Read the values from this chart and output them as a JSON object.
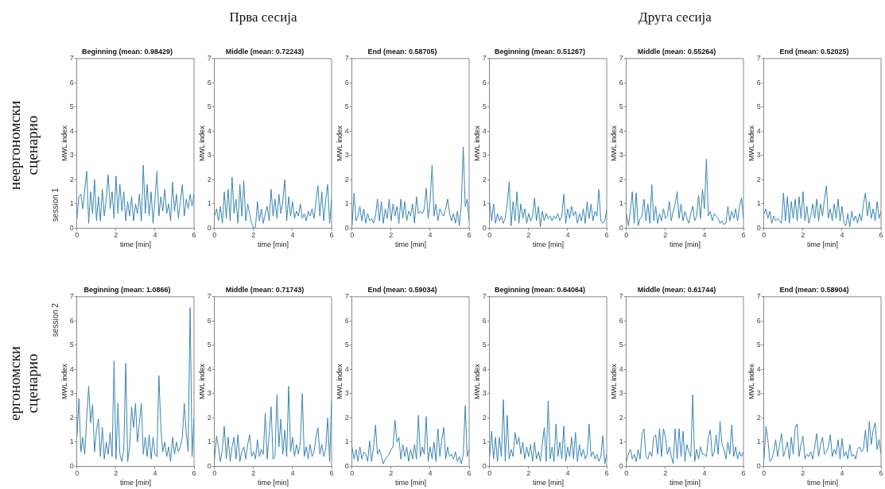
{
  "chart_data": [
    {
      "type": "line",
      "title": "Beginning (mean: 0.98429)",
      "xlabel": "time [min]",
      "ylabel": "MWL index",
      "annotations": [
        "session 1",
        "неергономски сценарио"
      ],
      "color": "#3a86b0",
      "xlim": [
        0,
        6
      ],
      "xticks": [
        0,
        2,
        4,
        6
      ],
      "ylim": [
        0,
        7
      ],
      "yticks": [
        0,
        1,
        2,
        3,
        4,
        5,
        6,
        7
      ],
      "x": [
        0,
        0.1,
        0.2,
        0.3,
        0.4,
        0.5,
        0.6,
        0.7,
        0.8,
        0.9,
        1,
        1.1,
        1.2,
        1.3,
        1.4,
        1.5,
        1.6,
        1.7,
        1.8,
        1.9,
        2,
        2.1,
        2.2,
        2.3,
        2.4,
        2.5,
        2.6,
        2.7,
        2.8,
        2.9,
        3,
        3.1,
        3.2,
        3.3,
        3.4,
        3.5,
        3.6,
        3.7,
        3.8,
        3.9,
        4,
        4.1,
        4.2,
        4.3,
        4.4,
        4.5,
        4.6,
        4.7,
        4.8,
        4.9,
        5,
        5.1,
        5.2,
        5.3,
        5.4,
        5.5,
        5.6,
        5.7,
        5.8,
        5.9,
        6
      ],
      "values": [
        0.4,
        1.3,
        1.4,
        0.8,
        1.6,
        2.35,
        0.2,
        1.5,
        0.6,
        2.0,
        0.3,
        1.3,
        0.3,
        1.6,
        0.5,
        1.2,
        2.2,
        0.8,
        1.5,
        0.4,
        2.15,
        0.6,
        1.8,
        0.7,
        1.5,
        0.3,
        1.1,
        0.5,
        1.3,
        0.3,
        1.0,
        0.6,
        1.4,
        0.3,
        2.6,
        0.6,
        1.8,
        0.5,
        1.5,
        0.2,
        1.2,
        2.35,
        0.5,
        1.3,
        0.7,
        1.6,
        0.6,
        1.0,
        0.3,
        1.9,
        0.7,
        1.4,
        0.4,
        1.1,
        1.8,
        0.5,
        1.2,
        0.8,
        1.4,
        0.9,
        1.4
      ]
    },
    {
      "type": "line",
      "title": "Middle (mean: 0.72243)",
      "xlabel": "time [min]",
      "ylabel": "MWL index",
      "annotations": [
        "Прва сесија"
      ],
      "color": "#3a86b0",
      "xlim": [
        0,
        6
      ],
      "xticks": [
        0,
        2,
        4,
        6
      ],
      "ylim": [
        0,
        7
      ],
      "yticks": [
        0,
        1,
        2,
        3,
        4,
        5,
        6,
        7
      ],
      "x": [
        0,
        0.1,
        0.2,
        0.3,
        0.4,
        0.5,
        0.6,
        0.7,
        0.8,
        0.9,
        1,
        1.1,
        1.2,
        1.3,
        1.4,
        1.5,
        1.6,
        1.7,
        1.8,
        1.9,
        2,
        2.1,
        2.2,
        2.3,
        2.4,
        2.5,
        2.6,
        2.7,
        2.8,
        2.9,
        3,
        3.1,
        3.2,
        3.3,
        3.4,
        3.5,
        3.6,
        3.7,
        3.8,
        3.9,
        4,
        4.1,
        4.2,
        4.3,
        4.4,
        4.5,
        4.6,
        4.7,
        4.8,
        4.9,
        5,
        5.1,
        5.2,
        5.3,
        5.4,
        5.5,
        5.6,
        5.7,
        5.8,
        5.9,
        6
      ],
      "values": [
        0.5,
        0.8,
        0.3,
        0.9,
        0.2,
        1.5,
        0.4,
        1.6,
        0.3,
        2.1,
        0.6,
        1.2,
        0.2,
        1.8,
        0.5,
        1.95,
        0.3,
        1.0,
        0.6,
        0.2,
        0.0,
        0.05,
        1.1,
        0.3,
        0.8,
        0.2,
        0.6,
        0.9,
        0.3,
        1.6,
        0.5,
        1.2,
        0.4,
        1.4,
        0.6,
        1.1,
        2.0,
        0.3,
        1.3,
        0.5,
        1.1,
        0.4,
        0.7,
        0.5,
        1.0,
        0.4,
        0.6,
        0.3,
        0.7,
        0.5,
        0.8,
        0.4,
        1.1,
        1.75,
        0.5,
        1.5,
        0.3,
        1.2,
        1.8,
        0.2,
        1.2
      ]
    },
    {
      "type": "line",
      "title": "End (mean: 0.58705)",
      "xlabel": "time [min]",
      "ylabel": "MWL index",
      "color": "#3a86b0",
      "xlim": [
        0,
        6
      ],
      "xticks": [
        0,
        2,
        4,
        6
      ],
      "ylim": [
        0,
        7
      ],
      "yticks": [
        0,
        1,
        2,
        3,
        4,
        5,
        6,
        7
      ],
      "x": [
        0,
        0.1,
        0.2,
        0.3,
        0.4,
        0.5,
        0.6,
        0.7,
        0.8,
        0.9,
        1,
        1.1,
        1.2,
        1.3,
        1.4,
        1.5,
        1.6,
        1.7,
        1.8,
        1.9,
        2,
        2.1,
        2.2,
        2.3,
        2.4,
        2.5,
        2.6,
        2.7,
        2.8,
        2.9,
        3,
        3.1,
        3.2,
        3.3,
        3.4,
        3.5,
        3.6,
        3.7,
        3.8,
        3.9,
        4,
        4.1,
        4.2,
        4.3,
        4.4,
        4.5,
        4.6,
        4.7,
        4.8,
        4.9,
        5,
        5.1,
        5.2,
        5.3,
        5.4,
        5.5,
        5.6,
        5.7,
        5.8,
        5.9,
        6
      ],
      "values": [
        0.1,
        1.45,
        0.3,
        0.5,
        0.9,
        0.3,
        0.8,
        0.2,
        0.6,
        0.3,
        0.4,
        0.2,
        0.5,
        1.2,
        0.3,
        1.1,
        0.2,
        0.8,
        0.4,
        1.2,
        0.3,
        1.0,
        0.5,
        0.9,
        0.2,
        1.2,
        0.4,
        1.1,
        0.3,
        0.7,
        0.5,
        1.0,
        0.2,
        1.3,
        0.6,
        0.7,
        0.6,
        0.8,
        1.65,
        0.4,
        1.1,
        2.6,
        0.5,
        1.0,
        0.3,
        0.8,
        0.6,
        0.5,
        0.8,
        1.2,
        0.6,
        0.3,
        0.6,
        0.2,
        0.7,
        0.1,
        1.0,
        3.35,
        0.9,
        1.2,
        0.3
      ]
    },
    {
      "type": "line",
      "title": "Beginning (mean: 0.51267)",
      "xlabel": "time [min]",
      "ylabel": "MWL index",
      "color": "#3a86b0",
      "xlim": [
        0,
        6
      ],
      "xticks": [
        0,
        2,
        4,
        6
      ],
      "ylim": [
        0,
        7
      ],
      "yticks": [
        0,
        1,
        2,
        3,
        4,
        5,
        6,
        7
      ],
      "x": [
        0,
        0.1,
        0.2,
        0.3,
        0.4,
        0.5,
        0.6,
        0.7,
        0.8,
        0.9,
        1,
        1.1,
        1.2,
        1.3,
        1.4,
        1.5,
        1.6,
        1.7,
        1.8,
        1.9,
        2,
        2.1,
        2.2,
        2.3,
        2.4,
        2.5,
        2.6,
        2.7,
        2.8,
        2.9,
        3,
        3.1,
        3.2,
        3.3,
        3.4,
        3.5,
        3.6,
        3.7,
        3.8,
        3.9,
        4,
        4.1,
        4.2,
        4.3,
        4.4,
        4.5,
        4.6,
        4.7,
        4.8,
        4.9,
        5,
        5.1,
        5.2,
        5.3,
        5.4,
        5.5,
        5.6,
        5.7,
        5.8,
        5.9,
        6
      ],
      "values": [
        1.1,
        0.3,
        1.0,
        0.2,
        0.6,
        0.3,
        0.5,
        0.2,
        0.4,
        1.0,
        1.9,
        0.1,
        1.1,
        0.3,
        1.5,
        0.2,
        1.0,
        0.4,
        0.8,
        0.2,
        0.6,
        0.3,
        0.5,
        1.25,
        0.3,
        0.9,
        0.05,
        0.7,
        0.3,
        0.6,
        0.4,
        0.5,
        0.3,
        0.5,
        0.4,
        0.6,
        0.3,
        0.5,
        1.4,
        0.2,
        0.8,
        0.4,
        0.9,
        0.5,
        0.7,
        0.2,
        0.6,
        0.3,
        0.8,
        0.2,
        1.1,
        0.4,
        1.0,
        0.3,
        0.7,
        0.5,
        1.6,
        0.3,
        0.2,
        0.3,
        0.75
      ]
    },
    {
      "type": "line",
      "title": "Middle (mean: 0.55264)",
      "xlabel": "time [min]",
      "ylabel": "MWL index",
      "annotations": [
        "Друга сесија"
      ],
      "color": "#3a86b0",
      "xlim": [
        0,
        6
      ],
      "xticks": [
        0,
        2,
        4,
        6
      ],
      "ylim": [
        0,
        7
      ],
      "yticks": [
        0,
        1,
        2,
        3,
        4,
        5,
        6,
        7
      ],
      "x": [
        0,
        0.1,
        0.2,
        0.3,
        0.4,
        0.5,
        0.6,
        0.7,
        0.8,
        0.9,
        1,
        1.1,
        1.2,
        1.3,
        1.4,
        1.5,
        1.6,
        1.7,
        1.8,
        1.9,
        2,
        2.1,
        2.2,
        2.3,
        2.4,
        2.5,
        2.6,
        2.7,
        2.8,
        2.9,
        3,
        3.1,
        3.2,
        3.3,
        3.4,
        3.5,
        3.6,
        3.7,
        3.8,
        3.9,
        4,
        4.1,
        4.2,
        4.3,
        4.4,
        4.5,
        4.6,
        4.7,
        4.8,
        4.9,
        5,
        5.1,
        5.2,
        5.3,
        5.4,
        5.5,
        5.6,
        5.7,
        5.8,
        5.9,
        6
      ],
      "values": [
        0.6,
        0.1,
        0.7,
        1.5,
        0.2,
        1.45,
        0.1,
        0.4,
        0.5,
        1.2,
        0.3,
        1.0,
        0.2,
        1.8,
        0.3,
        0.9,
        0.2,
        0.6,
        0.3,
        0.8,
        0.4,
        0.5,
        1.1,
        0.3,
        0.7,
        1.0,
        1.5,
        0.4,
        1.0,
        0.3,
        0.7,
        0.4,
        0.2,
        0.6,
        0.9,
        0.3,
        0.5,
        1.35,
        0.4,
        1.6,
        0.8,
        2.85,
        0.5,
        0.7,
        0.3,
        0.6,
        0.5,
        0.4,
        0.2,
        0.3,
        0.15,
        0.2,
        0.9,
        0.3,
        0.7,
        0.4,
        0.8,
        0.3,
        0.9,
        1.25,
        0.4
      ]
    },
    {
      "type": "line",
      "title": "End (mean: 0.52025)",
      "xlabel": "time [min]",
      "ylabel": "MWL index",
      "color": "#3a86b0",
      "xlim": [
        0,
        6
      ],
      "xticks": [
        0,
        2,
        4,
        6
      ],
      "ylim": [
        0,
        7
      ],
      "yticks": [
        0,
        1,
        2,
        3,
        4,
        5,
        6,
        7
      ],
      "x": [
        0,
        0.1,
        0.2,
        0.3,
        0.4,
        0.5,
        0.6,
        0.7,
        0.8,
        0.9,
        1,
        1.1,
        1.2,
        1.3,
        1.4,
        1.5,
        1.6,
        1.7,
        1.8,
        1.9,
        2,
        2.1,
        2.2,
        2.3,
        2.4,
        2.5,
        2.6,
        2.7,
        2.8,
        2.9,
        3,
        3.1,
        3.2,
        3.3,
        3.4,
        3.5,
        3.6,
        3.7,
        3.8,
        3.9,
        4,
        4.1,
        4.2,
        4.3,
        4.4,
        4.5,
        4.6,
        4.7,
        4.8,
        4.9,
        5,
        5.1,
        5.2,
        5.3,
        5.4,
        5.5,
        5.6,
        5.7,
        5.8,
        5.9,
        6
      ],
      "values": [
        0.6,
        0.8,
        0.4,
        0.7,
        0.2,
        0.5,
        0.3,
        0.4,
        0.3,
        0.2,
        1.45,
        0.3,
        1.3,
        0.2,
        1.1,
        0.4,
        1.2,
        0.3,
        1.3,
        0.4,
        1.5,
        0.3,
        0.9,
        0.2,
        0.5,
        1.0,
        0.4,
        1.2,
        0.3,
        1.0,
        0.5,
        1.2,
        1.75,
        0.4,
        0.8,
        0.3,
        1.0,
        0.4,
        1.2,
        0.3,
        0.9,
        0.2,
        0.1,
        0.6,
        0.05,
        0.7,
        0.3,
        0.5,
        0.2,
        0.6,
        0.3,
        1.0,
        1.45,
        0.5,
        1.1,
        0.4,
        0.8,
        0.3,
        1.1,
        0.4,
        0.7
      ]
    },
    {
      "type": "line",
      "title": "Beginning (mean: 1.0866)",
      "xlabel": "time [min]",
      "ylabel": "MWL index",
      "annotations": [
        "session 2",
        "ергономски сценарио"
      ],
      "color": "#3a86b0",
      "xlim": [
        0,
        6
      ],
      "xticks": [
        0,
        2,
        4,
        6
      ],
      "ylim": [
        0,
        7
      ],
      "yticks": [
        0,
        1,
        2,
        3,
        4,
        5,
        6,
        7
      ],
      "x": [
        0,
        0.1,
        0.2,
        0.3,
        0.4,
        0.5,
        0.6,
        0.7,
        0.8,
        0.9,
        1,
        1.1,
        1.2,
        1.3,
        1.4,
        1.5,
        1.6,
        1.7,
        1.8,
        1.9,
        2,
        2.1,
        2.2,
        2.3,
        2.4,
        2.5,
        2.6,
        2.7,
        2.8,
        2.9,
        3,
        3.1,
        3.2,
        3.3,
        3.4,
        3.5,
        3.6,
        3.7,
        3.8,
        3.9,
        4,
        4.1,
        4.2,
        4.3,
        4.4,
        4.5,
        4.6,
        4.7,
        4.8,
        4.9,
        5,
        5.1,
        5.2,
        5.3,
        5.4,
        5.5,
        5.6,
        5.7,
        5.8,
        5.9,
        6
      ],
      "values": [
        1.2,
        2.8,
        0.6,
        1.2,
        0.5,
        2.0,
        3.3,
        1.8,
        2.55,
        0.6,
        1.5,
        1.95,
        0.4,
        1.6,
        0.3,
        1.0,
        0.5,
        1.4,
        0.4,
        4.35,
        0.3,
        2.6,
        0.5,
        0.2,
        0.7,
        4.25,
        0.2,
        0.8,
        2.45,
        1.6,
        2.6,
        1.0,
        1.8,
        2.6,
        0.5,
        1.2,
        0.4,
        1.3,
        0.3,
        1.2,
        0.5,
        0.4,
        3.75,
        1.6,
        0.6,
        1.0,
        0.4,
        0.8,
        0.2,
        1.2,
        0.5,
        1.0,
        0.6,
        0.8,
        1.2,
        2.6,
        1.4,
        0.6,
        6.55,
        0.4,
        2.0
      ]
    },
    {
      "type": "line",
      "title": "Middle (mean: 0.71743)",
      "xlabel": "time [min]",
      "ylabel": "MWL index",
      "color": "#3a86b0",
      "xlim": [
        0,
        6
      ],
      "xticks": [
        0,
        2,
        4,
        6
      ],
      "ylim": [
        0,
        7
      ],
      "yticks": [
        0,
        1,
        2,
        3,
        4,
        5,
        6,
        7
      ],
      "x": [
        0,
        0.1,
        0.2,
        0.3,
        0.4,
        0.5,
        0.6,
        0.7,
        0.8,
        0.9,
        1,
        1.1,
        1.2,
        1.3,
        1.4,
        1.5,
        1.6,
        1.7,
        1.8,
        1.9,
        2,
        2.1,
        2.2,
        2.3,
        2.4,
        2.5,
        2.6,
        2.7,
        2.8,
        2.9,
        3,
        3.1,
        3.2,
        3.3,
        3.4,
        3.5,
        3.6,
        3.7,
        3.8,
        3.9,
        4,
        4.1,
        4.2,
        4.3,
        4.4,
        4.5,
        4.6,
        4.7,
        4.8,
        4.9,
        5,
        5.1,
        5.2,
        5.3,
        5.4,
        5.5,
        5.6,
        5.7,
        5.8,
        5.9,
        6
      ],
      "values": [
        0.3,
        1.25,
        0.8,
        0.2,
        0.7,
        1.65,
        0.3,
        1.2,
        0.2,
        0.8,
        1.2,
        0.3,
        1.3,
        0.2,
        0.6,
        0.8,
        0.3,
        0.9,
        1.3,
        0.4,
        0.6,
        0.3,
        1.1,
        0.4,
        0.7,
        0.5,
        2.2,
        0.3,
        1.3,
        2.45,
        0.3,
        0.4,
        2.95,
        0.8,
        1.95,
        0.5,
        1.5,
        0.4,
        3.3,
        0.6,
        1.2,
        0.4,
        0.9,
        0.5,
        1.0,
        3.0,
        0.4,
        0.8,
        0.3,
        0.9,
        0.4,
        0.6,
        1.2,
        1.6,
        0.5,
        0.9,
        0.4,
        0.7,
        2.0,
        0.2,
        2.75
      ]
    },
    {
      "type": "line",
      "title": "End (mean: 0.59034)",
      "xlabel": "time [min]",
      "ylabel": "MWL index",
      "color": "#3a86b0",
      "xlim": [
        0,
        6
      ],
      "xticks": [
        0,
        2,
        4,
        6
      ],
      "ylim": [
        0,
        7
      ],
      "yticks": [
        0,
        1,
        2,
        3,
        4,
        5,
        6,
        7
      ],
      "x": [
        0,
        0.1,
        0.2,
        0.3,
        0.4,
        0.5,
        0.6,
        0.7,
        0.8,
        0.9,
        1,
        1.1,
        1.2,
        1.3,
        1.4,
        1.5,
        1.6,
        1.7,
        1.8,
        1.9,
        2,
        2.1,
        2.2,
        2.3,
        2.4,
        2.5,
        2.6,
        2.7,
        2.8,
        2.9,
        3,
        3.1,
        3.2,
        3.3,
        3.4,
        3.5,
        3.6,
        3.7,
        3.8,
        3.9,
        4,
        4.1,
        4.2,
        4.3,
        4.4,
        4.5,
        4.6,
        4.7,
        4.8,
        4.9,
        5,
        5.1,
        5.2,
        5.3,
        5.4,
        5.5,
        5.6,
        5.7,
        5.8,
        5.9,
        6
      ],
      "values": [
        0.8,
        0.3,
        0.7,
        0.2,
        0.8,
        0.3,
        0.6,
        0.5,
        0.2,
        1.05,
        0.2,
        0.8,
        1.7,
        0.5,
        0.7,
        0.4,
        0.1,
        0.3,
        0.4,
        0.5,
        0.7,
        0.8,
        1.9,
        1.0,
        1.2,
        0.3,
        0.9,
        0.4,
        0.8,
        0.2,
        0.7,
        0.3,
        0.9,
        0.3,
        2.1,
        0.4,
        0.8,
        0.5,
        2.05,
        0.2,
        0.8,
        0.3,
        1.0,
        0.2,
        1.55,
        0.4,
        1.1,
        1.6,
        0.3,
        0.8,
        0.4,
        0.5,
        0.3,
        0.6,
        0.2,
        0.4,
        0.1,
        0.5,
        2.5,
        0.4,
        0.7
      ]
    },
    {
      "type": "line",
      "title": "Beginning (mean: 0.64064)",
      "xlabel": "time [min]",
      "ylabel": "MWL index",
      "color": "#3a86b0",
      "xlim": [
        0,
        6
      ],
      "xticks": [
        0,
        2,
        4,
        6
      ],
      "ylim": [
        0,
        7
      ],
      "yticks": [
        0,
        1,
        2,
        3,
        4,
        5,
        6,
        7
      ],
      "x": [
        0,
        0.1,
        0.2,
        0.3,
        0.4,
        0.5,
        0.6,
        0.7,
        0.8,
        0.9,
        1,
        1.1,
        1.2,
        1.3,
        1.4,
        1.5,
        1.6,
        1.7,
        1.8,
        1.9,
        2,
        2.1,
        2.2,
        2.3,
        2.4,
        2.5,
        2.6,
        2.7,
        2.8,
        2.9,
        3,
        3.1,
        3.2,
        3.3,
        3.4,
        3.5,
        3.6,
        3.7,
        3.8,
        3.9,
        4,
        4.1,
        4.2,
        4.3,
        4.4,
        4.5,
        4.6,
        4.7,
        4.8,
        4.9,
        5,
        5.1,
        5.2,
        5.3,
        5.4,
        5.5,
        5.6,
        5.7,
        5.8,
        5.9,
        6
      ],
      "values": [
        0.4,
        1.45,
        0.3,
        1.2,
        0.2,
        1.2,
        0.4,
        2.75,
        0.2,
        2.1,
        0.3,
        0.7,
        0.4,
        1.4,
        0.9,
        1.2,
        0.5,
        1.0,
        0.3,
        0.8,
        0.4,
        0.9,
        0.2,
        1.0,
        0.3,
        0.6,
        0.2,
        0.9,
        1.6,
        0.2,
        2.7,
        0.3,
        0.8,
        0.2,
        1.75,
        0.4,
        1.0,
        0.3,
        1.65,
        0.2,
        0.8,
        0.4,
        1.2,
        0.3,
        1.4,
        0.2,
        0.9,
        0.4,
        0.7,
        0.3,
        0.5,
        1.75,
        0.4,
        0.6,
        0.3,
        0.5,
        0.2,
        0.4,
        1.25,
        0.1,
        0.5
      ]
    },
    {
      "type": "line",
      "title": "Middle (mean: 0.61744)",
      "xlabel": "time [min]",
      "ylabel": "MWL index",
      "color": "#3a86b0",
      "xlim": [
        0,
        6
      ],
      "xticks": [
        0,
        2,
        4,
        6
      ],
      "ylim": [
        0,
        7
      ],
      "yticks": [
        0,
        1,
        2,
        3,
        4,
        5,
        6,
        7
      ],
      "x": [
        0,
        0.1,
        0.2,
        0.3,
        0.4,
        0.5,
        0.6,
        0.7,
        0.8,
        0.9,
        1,
        1.1,
        1.2,
        1.3,
        1.4,
        1.5,
        1.6,
        1.7,
        1.8,
        1.9,
        2,
        2.1,
        2.2,
        2.3,
        2.4,
        2.5,
        2.6,
        2.7,
        2.8,
        2.9,
        3,
        3.1,
        3.2,
        3.3,
        3.4,
        3.5,
        3.6,
        3.7,
        3.8,
        3.9,
        4,
        4.1,
        4.2,
        4.3,
        4.4,
        4.5,
        4.6,
        4.7,
        4.8,
        4.9,
        5,
        5.1,
        5.2,
        5.3,
        5.4,
        5.5,
        5.6,
        5.7,
        5.8,
        5.9,
        6
      ],
      "values": [
        0.2,
        0.5,
        0.7,
        0.3,
        0.5,
        0.2,
        0.7,
        0.3,
        1.35,
        1.55,
        0.4,
        0.3,
        0.6,
        0.4,
        1.2,
        1.3,
        0.5,
        1.55,
        0.4,
        1.55,
        1.2,
        0.5,
        0.8,
        0.4,
        0.1,
        1.55,
        0.3,
        1.55,
        0.4,
        1.45,
        0.2,
        0.9,
        0.6,
        0.4,
        2.95,
        0.2,
        0.7,
        0.3,
        0.8,
        0.5,
        0.5,
        0.4,
        1.2,
        1.5,
        0.4,
        0.6,
        1.3,
        0.5,
        1.85,
        0.9,
        0.7,
        0.3,
        1.0,
        0.5,
        1.7,
        0.4,
        0.8,
        0.3,
        0.6,
        0.4,
        0.6
      ]
    },
    {
      "type": "line",
      "title": "End (mean: 0.58904)",
      "xlabel": "time [min]",
      "ylabel": "MWL index",
      "color": "#3a86b0",
      "xlim": [
        0,
        6
      ],
      "xticks": [
        0,
        2,
        4,
        6
      ],
      "ylim": [
        0,
        7
      ],
      "yticks": [
        0,
        1,
        2,
        3,
        4,
        5,
        6,
        7
      ],
      "x": [
        0,
        0.1,
        0.2,
        0.3,
        0.4,
        0.5,
        0.6,
        0.7,
        0.8,
        0.9,
        1,
        1.1,
        1.2,
        1.3,
        1.4,
        1.5,
        1.6,
        1.7,
        1.8,
        1.9,
        2,
        2.1,
        2.2,
        2.3,
        2.4,
        2.5,
        2.6,
        2.7,
        2.8,
        2.9,
        3,
        3.1,
        3.2,
        3.3,
        3.4,
        3.5,
        3.6,
        3.7,
        3.8,
        3.9,
        4,
        4.1,
        4.2,
        4.3,
        4.4,
        4.5,
        4.6,
        4.7,
        4.8,
        4.9,
        5,
        5.1,
        5.2,
        5.3,
        5.4,
        5.5,
        5.6,
        5.7,
        5.8,
        5.9,
        6
      ],
      "values": [
        0.3,
        1.65,
        1.1,
        0.2,
        0.3,
        0.6,
        1.1,
        0.4,
        0.9,
        1.35,
        0.4,
        0.7,
        1.0,
        0.3,
        1.2,
        0.5,
        1.6,
        1.75,
        0.4,
        0.9,
        1.25,
        0.3,
        0.5,
        0.4,
        0.6,
        0.3,
        0.8,
        1.35,
        0.4,
        0.9,
        1.2,
        0.5,
        0.6,
        0.8,
        1.3,
        0.4,
        0.7,
        0.5,
        1.1,
        0.3,
        1.15,
        0.4,
        0.6,
        0.3,
        0.9,
        0.4,
        0.5,
        0.3,
        0.7,
        0.8,
        0.6,
        0.7,
        1.5,
        0.6,
        1.85,
        0.9,
        1.5,
        1.8,
        0.7,
        1.1,
        0.5
      ]
    }
  ]
}
